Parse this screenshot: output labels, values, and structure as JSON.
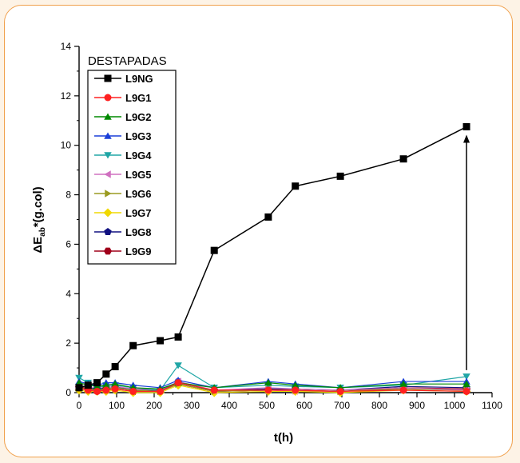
{
  "chart_data": {
    "type": "line",
    "title": "",
    "xlabel": "t(h)",
    "ylabel": "ΔE",
    "ylabel_sub": "ab",
    "ylabel_rest": "*(g.col)",
    "xlim": [
      0,
      1100
    ],
    "ylim": [
      0,
      14
    ],
    "x_ticks": [
      0,
      100,
      200,
      300,
      400,
      500,
      600,
      700,
      800,
      900,
      1000,
      1100
    ],
    "y_ticks": [
      0,
      2,
      4,
      6,
      8,
      10,
      12,
      14
    ],
    "grid": false,
    "legend": {
      "title": "DESTAPADAS",
      "placement": "top-left"
    },
    "x": [
      0,
      24,
      48,
      72,
      96,
      144,
      216,
      264,
      360,
      504,
      576,
      696,
      864,
      1032
    ],
    "series": [
      {
        "name": "L9NG",
        "color": "#000000",
        "marker": "square",
        "values": [
          0.2,
          0.3,
          0.4,
          0.75,
          1.05,
          1.9,
          2.1,
          2.25,
          5.75,
          7.1,
          8.35,
          8.75,
          9.45,
          10.75
        ]
      },
      {
        "name": "L9G1",
        "color": "#ff2020",
        "marker": "circle",
        "values": [
          0.2,
          0.1,
          0.05,
          0.1,
          0.15,
          0.05,
          0.05,
          0.4,
          0.1,
          0.1,
          0.1,
          0.05,
          0.1,
          0.05
        ]
      },
      {
        "name": "L9G2",
        "color": "#008a00",
        "marker": "triangle-up",
        "values": [
          0.4,
          0.3,
          0.25,
          0.3,
          0.35,
          0.2,
          0.15,
          0.4,
          0.2,
          0.4,
          0.3,
          0.2,
          0.35,
          0.35
        ]
      },
      {
        "name": "L9G3",
        "color": "#1a3fd8",
        "marker": "triangle-up",
        "values": [
          0.45,
          0.35,
          0.3,
          0.4,
          0.4,
          0.3,
          0.2,
          0.5,
          0.2,
          0.45,
          0.35,
          0.2,
          0.45,
          0.45
        ]
      },
      {
        "name": "L9G4",
        "color": "#20a6a6",
        "marker": "triangle-down",
        "values": [
          0.6,
          0.4,
          0.2,
          0.3,
          0.3,
          0.2,
          0.1,
          1.1,
          0.2,
          0.3,
          0.25,
          0.2,
          0.3,
          0.65
        ]
      },
      {
        "name": "L9G5",
        "color": "#d070c0",
        "marker": "triangle-left",
        "values": [
          0.3,
          0.2,
          0.2,
          0.2,
          0.25,
          0.15,
          0.1,
          0.45,
          0.1,
          0.2,
          0.15,
          0.1,
          0.2,
          0.1
        ]
      },
      {
        "name": "L9G6",
        "color": "#9a9a20",
        "marker": "triangle-right",
        "values": [
          0.2,
          0.15,
          0.1,
          0.15,
          0.2,
          0.1,
          0.05,
          0.35,
          0.05,
          0.1,
          0.1,
          0.05,
          0.15,
          0.1
        ]
      },
      {
        "name": "L9G7",
        "color": "#f0d800",
        "marker": "diamond",
        "values": [
          0.1,
          0.05,
          0.05,
          0.05,
          0.1,
          0.0,
          0.0,
          0.3,
          0.0,
          0.05,
          0.05,
          0.0,
          0.1,
          0.05
        ]
      },
      {
        "name": "L9G8",
        "color": "#101080",
        "marker": "pentagon",
        "values": [
          0.3,
          0.2,
          0.15,
          0.2,
          0.25,
          0.1,
          0.1,
          0.4,
          0.1,
          0.15,
          0.15,
          0.1,
          0.25,
          0.2
        ]
      },
      {
        "name": "L9G9",
        "color": "#a0001a",
        "marker": "hexagon",
        "values": [
          0.25,
          0.15,
          0.15,
          0.15,
          0.2,
          0.1,
          0.05,
          0.35,
          0.05,
          0.1,
          0.1,
          0.05,
          0.2,
          0.15
        ]
      },
      {
        "name": "",
        "color": "#5050c0",
        "marker": "circle",
        "values": [
          0.2,
          0.15,
          0.1,
          0.15,
          0.2,
          0.1,
          0.05,
          0.45,
          0.05,
          0.1,
          0.1,
          0.05,
          0.2,
          0.1
        ]
      },
      {
        "name": "",
        "color": "#ff20a0",
        "marker": "star",
        "values": [
          0.15,
          0.1,
          0.1,
          0.1,
          0.15,
          0.05,
          0.05,
          0.35,
          0.05,
          0.1,
          0.05,
          0.05,
          0.15,
          0.1
        ]
      }
    ],
    "legend_entries": [
      {
        "label": "L9NG",
        "color": "#000000",
        "marker": "square"
      },
      {
        "label": "L9G1",
        "color": "#ff2020",
        "marker": "circle"
      },
      {
        "label": "L9G2",
        "color": "#008a00",
        "marker": "triangle-up"
      },
      {
        "label": "L9G3",
        "color": "#1a3fd8",
        "marker": "triangle-up"
      },
      {
        "label": "L9G4",
        "color": "#20a6a6",
        "marker": "triangle-down"
      },
      {
        "label": "L9G5",
        "color": "#d070c0",
        "marker": "triangle-left"
      },
      {
        "label": "L9G6",
        "color": "#9a9a20",
        "marker": "triangle-right"
      },
      {
        "label": "L9G7",
        "color": "#f0d800",
        "marker": "diamond"
      },
      {
        "label": "L9G8",
        "color": "#101080",
        "marker": "pentagon"
      },
      {
        "label": "L9G9",
        "color": "#a0001a",
        "marker": "hexagon"
      }
    ],
    "annotation_arrow": {
      "x": 1032,
      "y_from": 0.65,
      "y_to": 10.75
    }
  }
}
